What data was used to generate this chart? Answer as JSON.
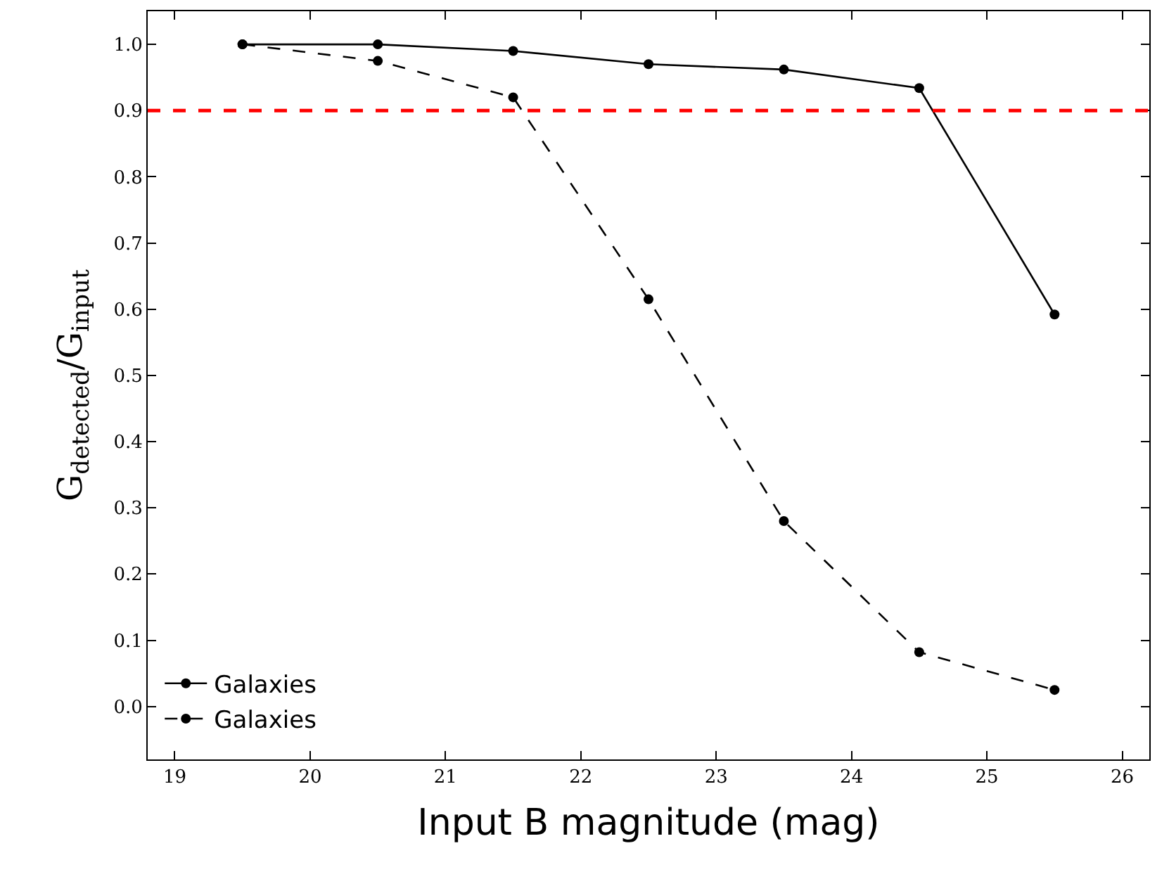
{
  "chart_data": {
    "type": "line",
    "xlabel": "Input B magnitude (mag)",
    "ylabel": "G$_{detected}$/G$_{input}$",
    "x": [
      19.5,
      20.5,
      21.5,
      22.5,
      23.5,
      24.5,
      25.5
    ],
    "series": [
      {
        "name": "Galaxies",
        "color": "#000000",
        "line_style": "solid",
        "values": [
          1.0,
          1.0,
          0.99,
          0.97,
          0.962,
          0.934,
          0.592
        ]
      },
      {
        "name": "Galaxies",
        "color": "#000000",
        "line_style": "dashed",
        "values": [
          1.0,
          0.975,
          0.92,
          0.615,
          0.28,
          0.082,
          0.025
        ]
      }
    ],
    "marker": "circle",
    "legend": "bottom left",
    "xlim": [
      18.8,
      26.2
    ],
    "xticks": [
      19,
      20,
      21,
      22,
      23,
      24,
      25,
      26
    ],
    "ylim": [
      -0.08,
      1.05
    ],
    "yticks": [
      {
        "value": 0.0,
        "label": "0.0"
      },
      {
        "value": 0.1,
        "label": "0.1"
      },
      {
        "value": 0.2,
        "label": "0.2"
      },
      {
        "value": 0.3,
        "label": "0.3"
      },
      {
        "value": 0.4,
        "label": "0.4"
      },
      {
        "value": 0.5,
        "label": "0.5"
      },
      {
        "value": 0.6,
        "label": "0.6"
      },
      {
        "value": 0.7,
        "label": "0.7"
      },
      {
        "value": 0.8,
        "label": "0.8"
      },
      {
        "value": 0.9,
        "label": "0.9"
      },
      {
        "value": 1.0,
        "label": "1.0"
      }
    ],
    "ref_lines": [
      {
        "axis": "y",
        "value": 0.9,
        "color": "#ff0000",
        "line_style": "dashed"
      }
    ]
  }
}
